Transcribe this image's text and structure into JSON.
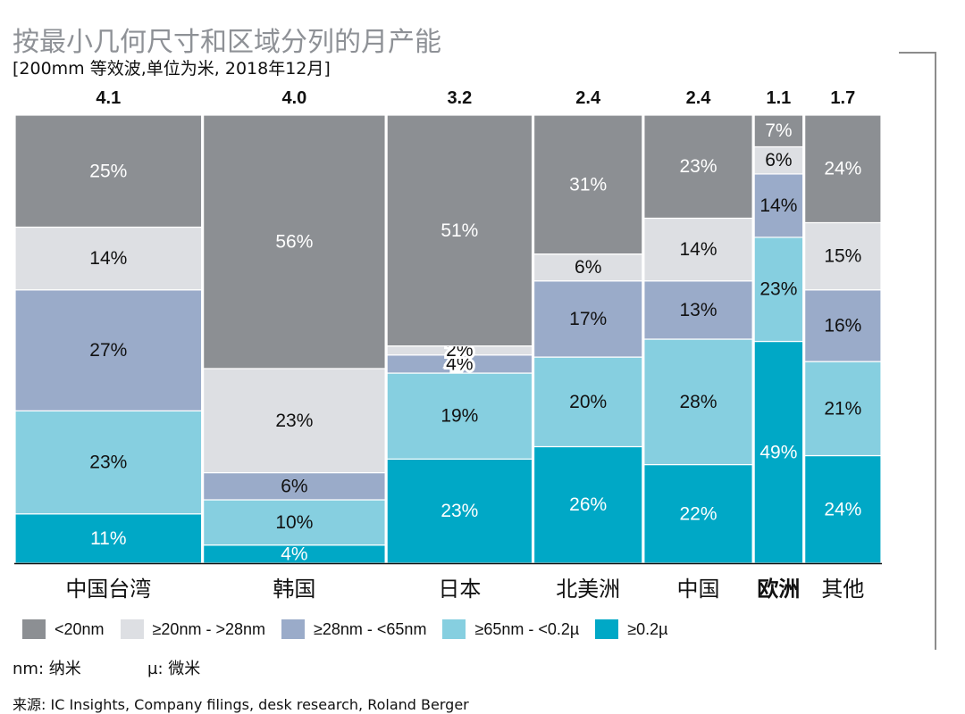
{
  "title": "按最小几何尺寸和区域分列的月产能",
  "subtitle": "[200mm 等效波,单位为米, 2018年12月]",
  "colors": {
    "lt20nm": "#8c8f93",
    "20to28nm": "#dddfe3",
    "28to65nm": "#9aabc9",
    "65to02u": "#86cfe0",
    "ge02u": "#00a8c6"
  },
  "chart_data": {
    "type": "bar",
    "subtype": "mekko-100pct-stacked",
    "categories": [
      "中国台湾",
      "韩国",
      "日本",
      "北美洲",
      "中国",
      "欧洲",
      "其他"
    ],
    "totals": [
      4.1,
      4.0,
      3.2,
      2.4,
      2.4,
      1.1,
      1.7
    ],
    "total_labels": [
      "4.1",
      "4.0",
      "3.2",
      "2.4",
      "2.4",
      "1.1",
      "1.7"
    ],
    "series": [
      {
        "name": "≥0.2µ",
        "values": [
          11,
          4,
          23,
          26,
          22,
          49,
          24
        ],
        "labels": [
          "11%",
          "4%",
          "23%",
          "26%",
          "22%",
          "49%",
          "24%"
        ]
      },
      {
        "name": "≥65nm - <0.2µ",
        "values": [
          23,
          10,
          19,
          20,
          28,
          23,
          21
        ],
        "labels": [
          "23%",
          "10%",
          "19%",
          "20%",
          "28%",
          "23%",
          "21%"
        ]
      },
      {
        "name": "≥28nm - <65nm",
        "values": [
          27,
          6,
          4,
          17,
          13,
          14,
          16
        ],
        "labels": [
          "27%",
          "6%",
          "4%",
          "17%",
          "13%",
          "14%",
          "16%"
        ]
      },
      {
        "name": "≥20nm - >28nm",
        "values": [
          14,
          23,
          2,
          6,
          14,
          6,
          15
        ],
        "labels": [
          "14%",
          "23%",
          "2%",
          "6%",
          "14%",
          "6%",
          "15%"
        ]
      },
      {
        "name": "<20nm",
        "values": [
          25,
          56,
          51,
          31,
          23,
          7,
          24
        ],
        "labels": [
          "25%",
          "56%",
          "51%",
          "31%",
          "23%",
          "7%",
          "24%"
        ]
      }
    ],
    "ylim": [
      0,
      100
    ]
  },
  "legend": [
    {
      "label": "<20nm",
      "color": "#8c8f93"
    },
    {
      "label": "≥20nm - >28nm",
      "color": "#dddfe3"
    },
    {
      "label": "≥28nm - <65nm",
      "color": "#9aabc9"
    },
    {
      "label": "≥65nm - <0.2µ",
      "color": "#86cfe0"
    },
    {
      "label": "≥0.2µ",
      "color": "#00a8c6"
    }
  ],
  "notes": {
    "nm": "nm: 纳米",
    "mu": "µ: 微米"
  },
  "source": "来源: IC Insights, Company filings, desk research, Roland Berger"
}
